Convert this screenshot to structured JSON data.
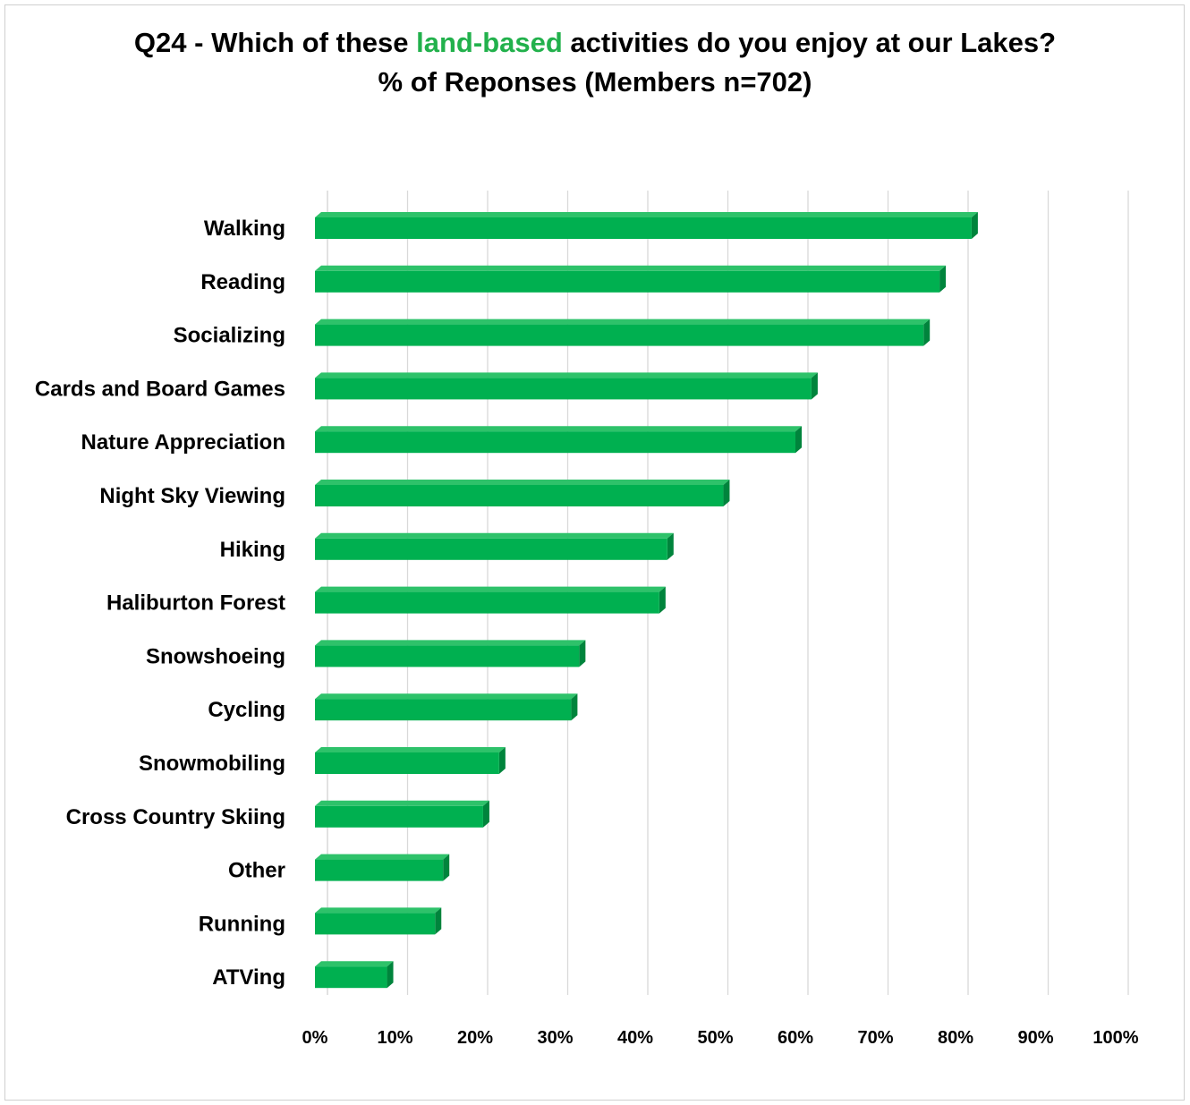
{
  "chart_data": {
    "type": "bar",
    "orientation": "horizontal",
    "title": {
      "prefix": "Q24 - Which of these ",
      "highlight": "land-based",
      "suffix": " activities do you enjoy at our Lakes?",
      "line2": "% of Reponses (Members n=702)"
    },
    "categories": [
      "Walking",
      "Reading",
      "Socializing",
      "Cards and Board Games",
      "Nature Appreciation",
      "Night Sky Viewing",
      "Hiking",
      "Haliburton Forest",
      "Snowshoeing",
      "Cycling",
      "Snowmobiling",
      "Cross Country Skiing",
      "Other",
      "Running",
      "ATVing"
    ],
    "values": [
      82,
      78,
      76,
      62,
      60,
      51,
      44,
      43,
      33,
      32,
      23,
      21,
      16,
      15,
      9
    ],
    "xlim": [
      0,
      100
    ],
    "ticks": [
      "0%",
      "10%",
      "20%",
      "30%",
      "40%",
      "50%",
      "60%",
      "70%",
      "80%",
      "90%",
      "100%"
    ],
    "grid": true,
    "colors": {
      "bar_front": "#00b050",
      "bar_top": "#2ec26a",
      "bar_side": "#00843c",
      "accent": "#22b14c",
      "grid": "#d9d9d9"
    }
  }
}
